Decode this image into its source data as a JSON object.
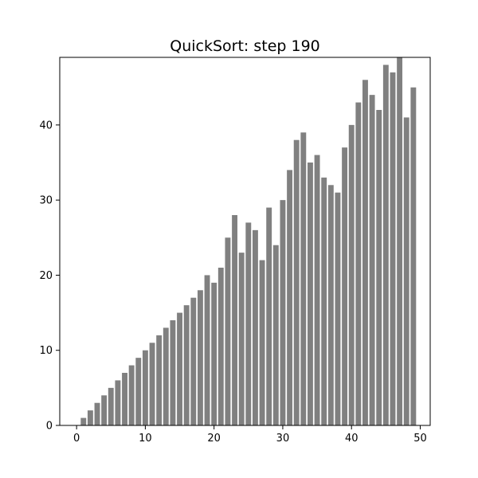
{
  "chart_data": {
    "type": "bar",
    "title": "QuickSort: step 190",
    "xlabel": "",
    "ylabel": "",
    "x": [
      0,
      1,
      2,
      3,
      4,
      5,
      6,
      7,
      8,
      9,
      10,
      11,
      12,
      13,
      14,
      15,
      16,
      17,
      18,
      19,
      20,
      21,
      22,
      23,
      24,
      25,
      26,
      27,
      28,
      29,
      30,
      31,
      32,
      33,
      34,
      35,
      36,
      37,
      38,
      39,
      40,
      41,
      42,
      43,
      44,
      45,
      46,
      47,
      48,
      49
    ],
    "values": [
      0,
      1,
      2,
      3,
      4,
      5,
      6,
      7,
      8,
      9,
      10,
      11,
      12,
      13,
      14,
      15,
      16,
      17,
      18,
      20,
      19,
      21,
      25,
      28,
      23,
      27,
      26,
      22,
      29,
      24,
      30,
      34,
      38,
      39,
      35,
      36,
      33,
      32,
      31,
      37,
      40,
      43,
      46,
      44,
      42,
      48,
      47,
      49,
      41,
      45
    ],
    "xlim": [
      -2.45,
      51.45
    ],
    "ylim": [
      0,
      49
    ],
    "xticks": [
      0,
      10,
      20,
      30,
      40,
      50
    ],
    "yticks": [
      0,
      10,
      20,
      30,
      40
    ],
    "grid": false,
    "legend": "none",
    "bar_color": "#808080"
  }
}
